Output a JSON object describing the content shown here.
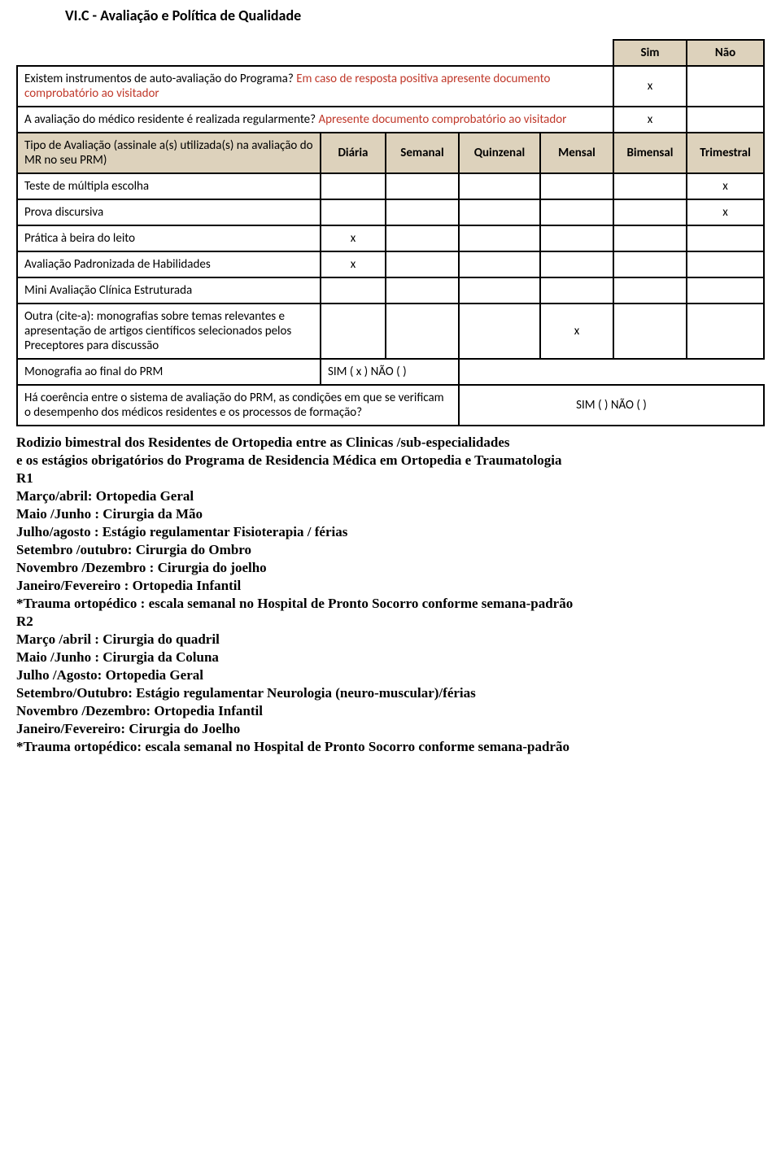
{
  "title": "VI.C - Avaliação e Política de Qualidade",
  "simnao": {
    "sim": "Sim",
    "nao": "Não"
  },
  "q1": {
    "text_a": "Existem instrumentos de auto-avaliação do Programa? ",
    "text_b": "Em caso de resposta positiva apresente documento comprobatório ao visitador",
    "sim": "x",
    "nao": ""
  },
  "q2": {
    "text_a": "A avaliação do médico residente é realizada regularmente? ",
    "text_b": "Apresente documento comprobatório ao visitador",
    "sim": "x",
    "nao": ""
  },
  "freq_header": {
    "label": "Tipo de Avaliação (assinale a(s) utilizada(s) na avaliação do MR no seu PRM)",
    "diaria": "Diária",
    "semanal": "Semanal",
    "quinzenal": "Quinzenal",
    "mensal": "Mensal",
    "bimensal": "Bimensal",
    "trimestral": "Trimestral"
  },
  "rows": {
    "teste": {
      "label": "Teste de múltipla escolha",
      "d": "",
      "s": "",
      "q": "",
      "m": "",
      "b": "",
      "t": "x"
    },
    "prova": {
      "label": "Prova discursiva",
      "d": "",
      "s": "",
      "q": "",
      "m": "",
      "b": "",
      "t": "x"
    },
    "pratica": {
      "label": "Prática à beira do leito",
      "d": "x",
      "s": "",
      "q": "",
      "m": "",
      "b": "",
      "t": ""
    },
    "avalpad": {
      "label": "Avaliação Padronizada de Habilidades",
      "d": "x",
      "s": "",
      "q": "",
      "m": "",
      "b": "",
      "t": ""
    },
    "mini": {
      "label": "Mini Avaliação Clínica Estruturada",
      "d": "",
      "s": "",
      "q": "",
      "m": "",
      "b": "",
      "t": ""
    },
    "outra": {
      "label": "Outra (cite-a): monografias sobre temas relevantes  e apresentação de artigos científicos selecionados pelos Preceptores para discussão",
      "d": "",
      "s": "",
      "q": "",
      "m": "x",
      "b": "",
      "t": ""
    }
  },
  "monografia": {
    "label": "Monografia ao final do PRM",
    "value": "SIM ( x )  NÃO (   )"
  },
  "coerencia": {
    "label": "Há coerência entre o sistema de avaliação do PRM, as condições em que se verificam o desempenho dos médicos residentes e os processos de formação?",
    "value": "SIM (    )  NÃO (    )"
  },
  "note": {
    "intro1": "Rodizio bimestral dos  Residentes de Ortopedia entre as Clinicas /sub-especialidades",
    "intro2": "e os estágios obrigatórios do Programa de Residencia Médica em Ortopedia e Traumatologia",
    "r1": {
      "h": "R1",
      "l1": "Março/abril: Ortopedia Geral",
      "l2": "Maio /Junho : Cirurgia da Mão",
      "l3": "Julho/agosto : Estágio regulamentar  Fisioterapia / férias",
      "l4": "Setembro /outubro: Cirurgia do Ombro",
      "l5": "Novembro /Dezembro : Cirurgia do joelho",
      "l6": "Janeiro/Fevereiro : Ortopedia Infantil",
      "l7": "*Trauma ortopédico : escala semanal no Hospital de Pronto Socorro conforme semana-padrão"
    },
    "r2": {
      "h": "R2",
      "l1": "Março /abril : Cirurgia do quadril",
      "l2": "Maio /Junho : Cirurgia da Coluna",
      "l3": "Julho /Agosto: Ortopedia Geral",
      "l4": "Setembro/Outubro: Estágio regulamentar  Neurologia (neuro-muscular)/férias",
      "l5": "Novembro /Dezembro: Ortopedia Infantil",
      "l6": "Janeiro/Fevereiro: Cirurgia do Joelho",
      "l7": "*Trauma ortopédico: escala semanal no Hospital de Pronto Socorro conforme semana-padrão"
    }
  }
}
